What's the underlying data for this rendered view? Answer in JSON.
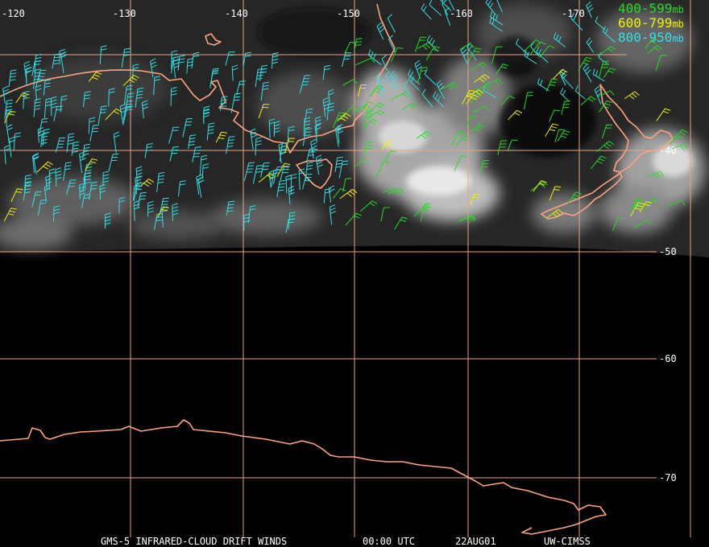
{
  "title": "GMS-5 INFRARED-CLOUD DRIFT WINDS",
  "time": "00:00 UTC",
  "date": "22AUG01",
  "source": "UW-CIMSS",
  "legend": [
    {
      "range": "400-599",
      "unit": "mb",
      "color": "#22dd22"
    },
    {
      "range": "600-799",
      "unit": "mb",
      "color": "#f0f000"
    },
    {
      "range": "800-950",
      "unit": "mb",
      "color": "#30e0e8"
    }
  ],
  "longitude_labels": [
    "-120",
    "-130",
    "-140",
    "-150",
    "-160",
    "-170"
  ],
  "latitude_labels": [
    "-40",
    "-50",
    "-60",
    "-70"
  ],
  "colors": {
    "grid": "#e7a487",
    "coast": "#ffa480",
    "background": "#000000"
  },
  "icons": [
    "wind-barb-icon"
  ]
}
